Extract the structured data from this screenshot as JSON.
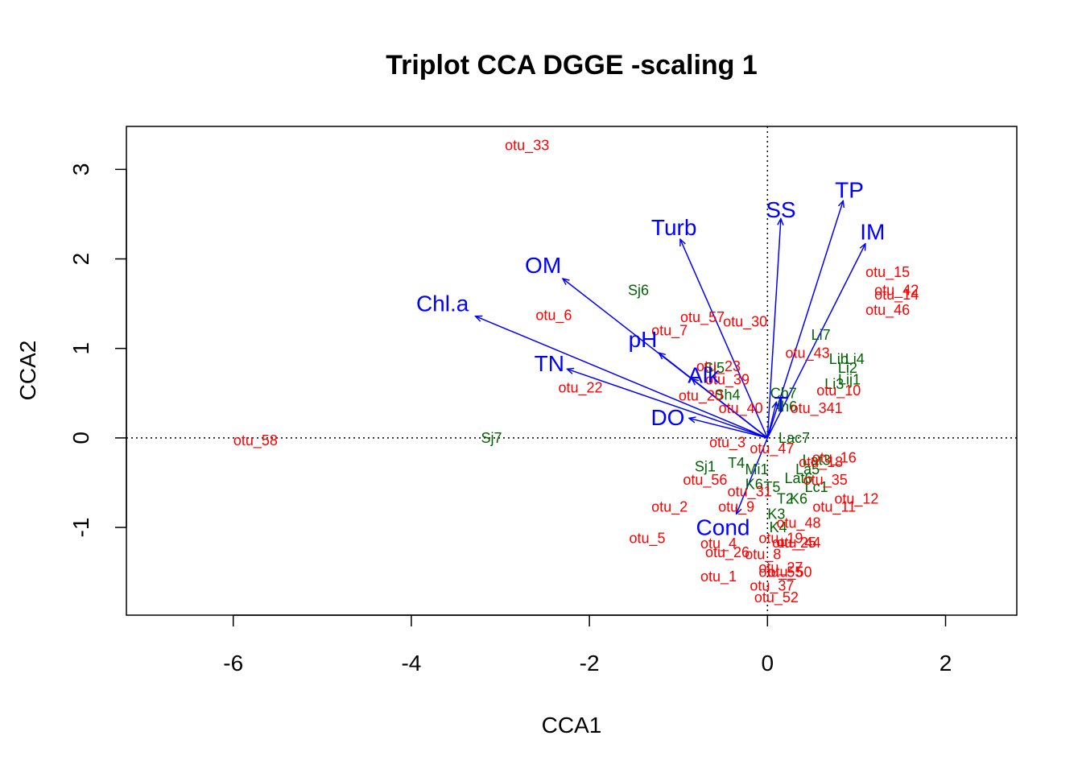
{
  "chart_data": {
    "type": "scatter",
    "title": "Triplot CCA DGGE -scaling 1",
    "xlabel": "CCA1",
    "ylabel": "CCA2",
    "xlim": [
      -7.2,
      2.8
    ],
    "ylim": [
      -1.98,
      3.48
    ],
    "x_ticks": [
      -6,
      -4,
      -2,
      0,
      2
    ],
    "y_ticks": [
      3,
      2,
      1,
      0,
      -1
    ],
    "grid": false,
    "reference_lines": {
      "x": 0,
      "y": 0,
      "style": "dotted"
    },
    "colors": {
      "sites": "#006400",
      "species": "#ff0000",
      "environment": "#0000ff",
      "frame": "#000000"
    },
    "environment_arrows": [
      {
        "name": "TP",
        "x": 0.85,
        "y": 2.65,
        "label_x": 0.92,
        "label_y": 2.77
      },
      {
        "name": "SS",
        "x": 0.15,
        "y": 2.45,
        "label_x": 0.15,
        "label_y": 2.55
      },
      {
        "name": "IM",
        "x": 1.1,
        "y": 2.17,
        "label_x": 1.18,
        "label_y": 2.3
      },
      {
        "name": "Turb",
        "x": -0.98,
        "y": 2.22,
        "label_x": -1.05,
        "label_y": 2.35
      },
      {
        "name": "OM",
        "x": -2.3,
        "y": 1.78,
        "label_x": -2.52,
        "label_y": 1.93
      },
      {
        "name": "Chl.a",
        "x": -3.28,
        "y": 1.36,
        "label_x": -3.65,
        "label_y": 1.5
      },
      {
        "name": "pH",
        "x": -1.22,
        "y": 0.95,
        "label_x": -1.4,
        "label_y": 1.1
      },
      {
        "name": "TN",
        "x": -2.25,
        "y": 0.77,
        "label_x": -2.45,
        "label_y": 0.83
      },
      {
        "name": "Alk",
        "x": -0.85,
        "y": 0.66,
        "label_x": -0.72,
        "label_y": 0.7
      },
      {
        "name": "T",
        "x": 0.1,
        "y": 0.4,
        "label_x": 0.15,
        "label_y": 0.37
      },
      {
        "name": "DO",
        "x": -0.88,
        "y": 0.22,
        "label_x": -1.12,
        "label_y": 0.23
      },
      {
        "name": "Cond",
        "x": -0.35,
        "y": -0.85,
        "label_x": -0.5,
        "label_y": -1.0
      }
    ],
    "sites": [
      {
        "label": "Sj6",
        "x": -1.45,
        "y": 1.65
      },
      {
        "label": "Sj7",
        "x": -3.1,
        "y": 0.0
      },
      {
        "label": "Li7",
        "x": 0.6,
        "y": 1.15
      },
      {
        "label": "Li4",
        "x": 0.98,
        "y": 0.88
      },
      {
        "label": "Li2",
        "x": 0.9,
        "y": 0.78
      },
      {
        "label": "Lib",
        "x": 0.8,
        "y": 0.88
      },
      {
        "label": "Li3",
        "x": 0.75,
        "y": 0.6
      },
      {
        "label": "Lij1",
        "x": 0.92,
        "y": 0.65
      },
      {
        "label": "Cb7",
        "x": 0.18,
        "y": 0.5
      },
      {
        "label": "Ih6",
        "x": 0.22,
        "y": 0.35
      },
      {
        "label": "Sh4",
        "x": -0.45,
        "y": 0.48
      },
      {
        "label": "Sj5",
        "x": -0.6,
        "y": 0.78
      },
      {
        "label": "Sj1",
        "x": -0.7,
        "y": -0.32
      },
      {
        "label": "Lac7",
        "x": 0.3,
        "y": 0.0
      },
      {
        "label": "Lat3",
        "x": 0.55,
        "y": -0.25
      },
      {
        "label": "La5",
        "x": 0.45,
        "y": -0.35
      },
      {
        "label": "Lat6",
        "x": 0.35,
        "y": -0.45
      },
      {
        "label": "Lc1",
        "x": 0.55,
        "y": -0.55
      },
      {
        "label": "T5",
        "x": 0.05,
        "y": -0.55
      },
      {
        "label": "T2",
        "x": 0.2,
        "y": -0.68
      },
      {
        "label": "K6",
        "x": 0.35,
        "y": -0.68
      },
      {
        "label": "K6",
        "x": -0.15,
        "y": -0.52
      },
      {
        "label": "Mi1",
        "x": -0.12,
        "y": -0.35
      },
      {
        "label": "K3",
        "x": 0.1,
        "y": -0.85
      },
      {
        "label": "K4",
        "x": 0.12,
        "y": -1.0
      },
      {
        "label": "T4",
        "x": -0.35,
        "y": -0.28
      }
    ],
    "species": [
      {
        "label": "otu_33",
        "x": -2.7,
        "y": 3.27
      },
      {
        "label": "otu_6",
        "x": -2.4,
        "y": 1.37
      },
      {
        "label": "otu_22",
        "x": -2.1,
        "y": 0.56
      },
      {
        "label": "otu_58",
        "x": -5.75,
        "y": -0.03
      },
      {
        "label": "otu_57",
        "x": -0.73,
        "y": 1.35
      },
      {
        "label": "otu_30",
        "x": -0.25,
        "y": 1.3
      },
      {
        "label": "otu_7",
        "x": -1.1,
        "y": 1.2
      },
      {
        "label": "otu_15",
        "x": 1.35,
        "y": 1.85
      },
      {
        "label": "otu_42",
        "x": 1.45,
        "y": 1.65
      },
      {
        "label": "otu_14",
        "x": 1.45,
        "y": 1.6
      },
      {
        "label": "otu_46",
        "x": 1.35,
        "y": 1.43
      },
      {
        "label": "otu_43",
        "x": 0.45,
        "y": 0.95
      },
      {
        "label": "otu_10",
        "x": 0.8,
        "y": 0.53
      },
      {
        "label": "otu_341",
        "x": 0.55,
        "y": 0.33
      },
      {
        "label": "otu_23",
        "x": -0.55,
        "y": 0.8
      },
      {
        "label": "otu_39",
        "x": -0.45,
        "y": 0.65
      },
      {
        "label": "otu_40",
        "x": -0.3,
        "y": 0.33
      },
      {
        "label": "otu_20",
        "x": -0.75,
        "y": 0.47
      },
      {
        "label": "otu_3",
        "x": -0.45,
        "y": -0.05
      },
      {
        "label": "otu_47",
        "x": 0.05,
        "y": -0.12
      },
      {
        "label": "otu_16",
        "x": 0.75,
        "y": -0.22
      },
      {
        "label": "otu_18",
        "x": 0.6,
        "y": -0.27
      },
      {
        "label": "otu_35",
        "x": 0.65,
        "y": -0.47
      },
      {
        "label": "otu_12",
        "x": 1.0,
        "y": -0.68
      },
      {
        "label": "otu_11",
        "x": 0.75,
        "y": -0.77
      },
      {
        "label": "otu_56",
        "x": -0.7,
        "y": -0.47
      },
      {
        "label": "otu_31",
        "x": -0.2,
        "y": -0.6
      },
      {
        "label": "otu_2",
        "x": -1.1,
        "y": -0.77
      },
      {
        "label": "otu_9",
        "x": -0.35,
        "y": -0.77
      },
      {
        "label": "otu_48",
        "x": 0.35,
        "y": -0.95
      },
      {
        "label": "otu_19",
        "x": 0.15,
        "y": -1.12
      },
      {
        "label": "otu_25",
        "x": 0.3,
        "y": -1.17
      },
      {
        "label": "otu_44",
        "x": 0.35,
        "y": -1.17
      },
      {
        "label": "otu_5",
        "x": -1.35,
        "y": -1.12
      },
      {
        "label": "otu_4",
        "x": -0.55,
        "y": -1.18
      },
      {
        "label": "otu_26",
        "x": -0.45,
        "y": -1.28
      },
      {
        "label": "otu_8",
        "x": -0.05,
        "y": -1.3
      },
      {
        "label": "otu_27",
        "x": 0.15,
        "y": -1.45
      },
      {
        "label": "otu_50",
        "x": 0.25,
        "y": -1.5
      },
      {
        "label": "otu_55",
        "x": 0.15,
        "y": -1.5
      },
      {
        "label": "otu_1",
        "x": -0.55,
        "y": -1.55
      },
      {
        "label": "otu_37",
        "x": 0.05,
        "y": -1.65
      },
      {
        "label": "otu_52",
        "x": 0.1,
        "y": -1.78
      }
    ]
  }
}
